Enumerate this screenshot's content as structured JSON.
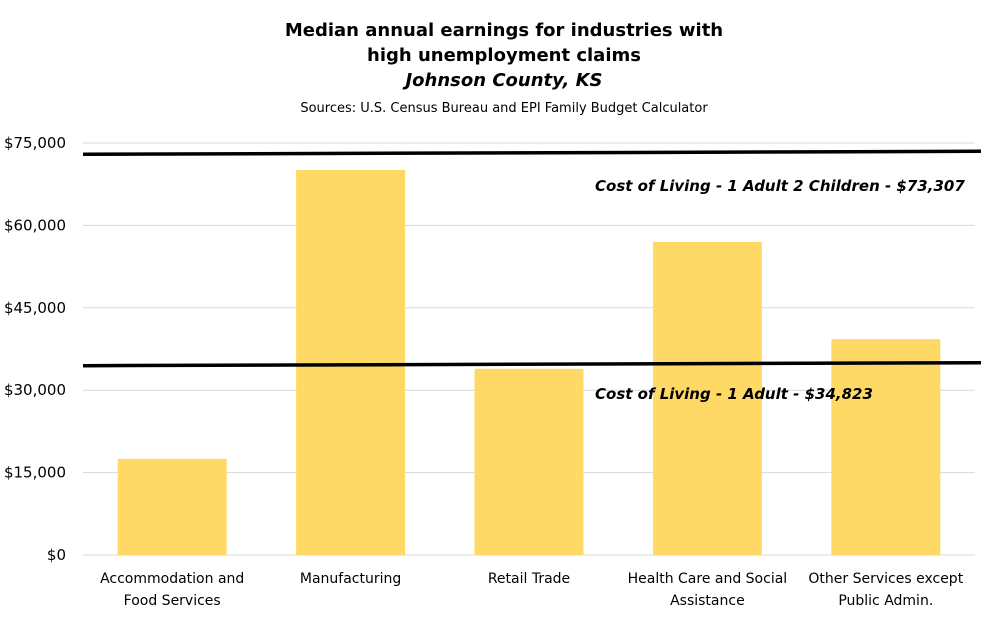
{
  "chart_data": {
    "type": "bar",
    "title_lines": [
      "Median annual earnings for industries with",
      "high unemployment claims"
    ],
    "subtitle": "Johnson County, KS",
    "source": "Sources: U.S. Census Bureau and EPI Family Budget Calculator",
    "categories": [
      [
        "Accommodation and",
        "Food Services"
      ],
      [
        "Manufacturing"
      ],
      [
        "Retail Trade"
      ],
      [
        "Health Care and Social",
        "Assistance"
      ],
      [
        "Other Services except",
        "Public Admin."
      ]
    ],
    "values": [
      17500,
      70100,
      33900,
      57000,
      39300
    ],
    "ylim": [
      0,
      75000
    ],
    "yticks": [
      0,
      15000,
      30000,
      45000,
      60000,
      75000
    ],
    "ytick_labels": [
      "$0",
      "$15,000",
      "$30,000",
      "$45,000",
      "$60,000",
      "$75,000"
    ],
    "grid": true,
    "reference_lines": [
      {
        "value": 73307,
        "label": "Cost of Living - 1 Adult 2 Children - $73,307"
      },
      {
        "value": 34823,
        "label": "Cost of Living - 1 Adult - $34,823"
      }
    ],
    "colors": {
      "bar": "#FFD966",
      "grid": "#D9D9D9",
      "line": "#000000"
    }
  }
}
